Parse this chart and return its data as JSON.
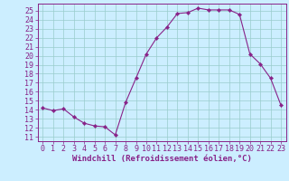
{
  "x": [
    0,
    1,
    2,
    3,
    4,
    5,
    6,
    7,
    8,
    9,
    10,
    11,
    12,
    13,
    14,
    15,
    16,
    17,
    18,
    19,
    20,
    21,
    22,
    23
  ],
  "y": [
    14.2,
    13.9,
    14.1,
    13.2,
    12.5,
    12.2,
    12.1,
    11.2,
    14.8,
    17.5,
    20.2,
    22.0,
    23.2,
    24.7,
    24.8,
    25.3,
    25.1,
    25.1,
    25.1,
    24.6,
    20.2,
    19.1,
    17.5,
    14.5
  ],
  "line_color": "#882288",
  "marker": "D",
  "marker_size": 2.2,
  "bg_color": "#cceeff",
  "grid_color": "#99cccc",
  "xlabel": "Windchill (Refroidissement éolien,°C)",
  "ylabel": "",
  "xlim": [
    -0.5,
    23.5
  ],
  "ylim": [
    10.5,
    25.8
  ],
  "yticks": [
    11,
    12,
    13,
    14,
    15,
    16,
    17,
    18,
    19,
    20,
    21,
    22,
    23,
    24,
    25
  ],
  "xticks": [
    0,
    1,
    2,
    3,
    4,
    5,
    6,
    7,
    8,
    9,
    10,
    11,
    12,
    13,
    14,
    15,
    16,
    17,
    18,
    19,
    20,
    21,
    22,
    23
  ],
  "axis_color": "#882288",
  "tick_color": "#882288",
  "xlabel_color": "#882288",
  "xlabel_fontsize": 6.5,
  "tick_fontsize": 6.0
}
